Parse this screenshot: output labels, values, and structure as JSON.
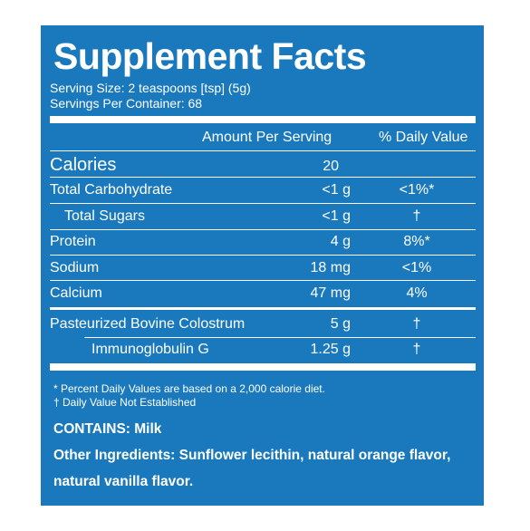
{
  "title": "Supplement Facts",
  "serving_size": "Serving Size: 2 teaspoons [tsp] (5g)",
  "servings_per_container": "Servings Per Container: 68",
  "headers": {
    "amount": "Amount Per Serving",
    "daily_value": "% Daily Value"
  },
  "calories": {
    "label": "Calories",
    "amount": "20"
  },
  "nutrients": [
    {
      "name": "Total Carbohydrate",
      "amount": "<1 g",
      "dv": "<1%*"
    },
    {
      "name": "Total Sugars",
      "amount": "<1 g",
      "dv": "†"
    },
    {
      "name": "Protein",
      "amount": "4 g",
      "dv": "8%*"
    },
    {
      "name": "Sodium",
      "amount": "18 mg",
      "dv": "<1%"
    },
    {
      "name": "Calcium",
      "amount": "47 mg",
      "dv": "4%"
    }
  ],
  "actives": [
    {
      "name": "Pasteurized Bovine Colostrum",
      "amount": "5 g",
      "dv": "†"
    },
    {
      "name": "Immunoglobulin G",
      "amount": "1.25 g",
      "dv": "†"
    }
  ],
  "footnotes": {
    "percent_dv": "* Percent Daily Values are based on a 2,000 calorie diet.",
    "not_established": "† Daily Value Not Established"
  },
  "contains": "CONTAINS: Milk",
  "other_ingredients_line1": "Other Ingredients: Sunflower lecithin, natural orange flavor,",
  "other_ingredients_line2": "natural vanilla flavor.",
  "colors": {
    "panel": "#1a79bd",
    "text": "#ffffff"
  }
}
